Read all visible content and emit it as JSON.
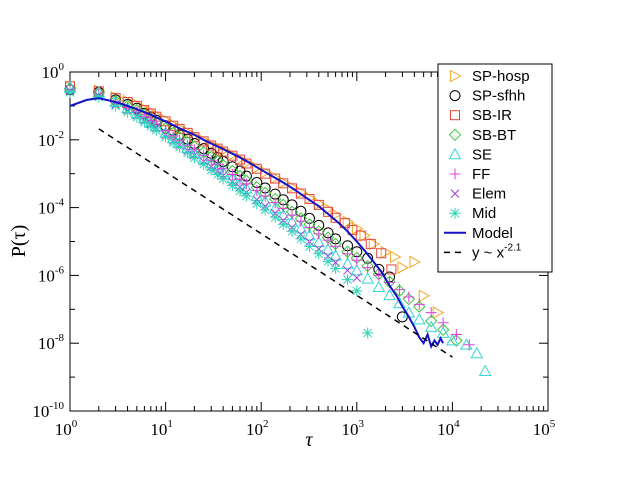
{
  "chart_data": {
    "type": "scatter",
    "title": "",
    "xlabel": "τ",
    "ylabel": "P(τ)",
    "xscale": "log",
    "yscale": "log",
    "xlim": [
      1,
      100000
    ],
    "ylim": [
      1e-10,
      1
    ],
    "x_ticks": [
      {
        "base": "10",
        "exp": "0",
        "value": 1
      },
      {
        "base": "10",
        "exp": "1",
        "value": 10
      },
      {
        "base": "10",
        "exp": "2",
        "value": 100
      },
      {
        "base": "10",
        "exp": "3",
        "value": 1000
      },
      {
        "base": "10",
        "exp": "4",
        "value": 10000
      },
      {
        "base": "10",
        "exp": "5",
        "value": 100000
      }
    ],
    "y_ticks": [
      {
        "base": "10",
        "exp": "0",
        "value": 1
      },
      {
        "base": "10",
        "exp": "-2",
        "value": 0.01
      },
      {
        "base": "10",
        "exp": "-4",
        "value": 0.0001
      },
      {
        "base": "10",
        "exp": "-6",
        "value": 1e-06
      },
      {
        "base": "10",
        "exp": "-8",
        "value": 1e-08
      },
      {
        "base": "10",
        "exp": "-10",
        "value": 1e-10
      }
    ],
    "legend_position": "top-right",
    "series": [
      {
        "name": "SP-hosp",
        "marker": "triangle-right",
        "color": "#f5a623",
        "x": [
          1,
          2,
          3,
          4,
          5,
          6,
          7,
          8,
          10,
          12,
          14,
          17,
          20,
          25,
          30,
          35,
          40,
          50,
          60,
          70,
          90,
          110,
          140,
          170,
          210,
          260,
          320,
          400,
          500,
          600,
          800,
          1000,
          1200,
          1500,
          2000,
          2500,
          3000,
          4000,
          5000,
          7000
        ],
        "y": [
          0.35,
          0.28,
          0.18,
          0.14,
          0.11,
          0.08,
          0.065,
          0.052,
          0.038,
          0.028,
          0.022,
          0.017,
          0.013,
          0.0095,
          0.0072,
          0.0058,
          0.0048,
          0.0036,
          0.0027,
          0.0021,
          0.0015,
          0.0011,
          0.00075,
          0.00055,
          0.0004,
          0.00028,
          0.00019,
          0.00013,
          9e-05,
          6.2e-05,
          3.8e-05,
          2.4e-05,
          1.5e-05,
          8.5e-06,
          4.8e-06,
          3.5e-06,
          1.7e-06,
          2.5e-06,
          2.5e-07,
          8e-08
        ]
      },
      {
        "name": "SP-sfhh",
        "marker": "circle",
        "color": "#000000",
        "x": [
          1,
          2,
          3,
          4,
          5,
          6,
          7,
          8,
          10,
          12,
          14,
          17,
          20,
          25,
          30,
          35,
          40,
          50,
          60,
          70,
          90,
          110,
          140,
          170,
          210,
          260,
          320,
          400,
          500,
          600,
          800,
          1000,
          1300,
          1700,
          2200,
          3000
        ],
        "y": [
          0.3,
          0.25,
          0.15,
          0.11,
          0.085,
          0.06,
          0.047,
          0.038,
          0.026,
          0.019,
          0.014,
          0.0105,
          0.0078,
          0.0055,
          0.004,
          0.003,
          0.0023,
          0.0016,
          0.0012,
          0.00085,
          0.00055,
          0.00038,
          0.00025,
          0.00017,
          0.00012,
          7.8e-05,
          4.8e-05,
          3e-05,
          1.8e-05,
          1.2e-05,
          7.5e-06,
          5e-06,
          3.2e-06,
          1.5e-06,
          9e-07,
          6e-08
        ]
      },
      {
        "name": "SB-IR",
        "marker": "square",
        "color": "#e8463d",
        "x": [
          1,
          2,
          3,
          4,
          5,
          6,
          7,
          8,
          10,
          12,
          14,
          17,
          20,
          25,
          30,
          35,
          40,
          50,
          60,
          70,
          90,
          110,
          140,
          170,
          210,
          260,
          320,
          400,
          500,
          600,
          750,
          900,
          1100,
          1400,
          1800,
          2300
        ],
        "y": [
          0.38,
          0.27,
          0.17,
          0.13,
          0.1,
          0.075,
          0.06,
          0.048,
          0.035,
          0.026,
          0.021,
          0.016,
          0.012,
          0.009,
          0.0068,
          0.0055,
          0.0045,
          0.0034,
          0.0026,
          0.002,
          0.0014,
          0.001,
          0.00072,
          0.00052,
          0.00037,
          0.00026,
          0.00018,
          0.00012,
          7.5e-05,
          5e-05,
          3.5e-05,
          2.2e-05,
          1.5e-05,
          8.5e-06,
          4.5e-06,
          1.5e-06
        ]
      },
      {
        "name": "SB-BT",
        "marker": "diamond",
        "color": "#3dc43d",
        "x": [
          1,
          2,
          3,
          4,
          5,
          6,
          7,
          8,
          10,
          12,
          14,
          17,
          20,
          25,
          30,
          35,
          40,
          50,
          60,
          70,
          90,
          110,
          140,
          170,
          210,
          260,
          320,
          400,
          500,
          600,
          800,
          1000,
          1300,
          1700,
          2200,
          2800,
          3500,
          4500,
          6000,
          8000,
          11000
        ],
        "y": [
          0.32,
          0.24,
          0.14,
          0.1,
          0.075,
          0.055,
          0.042,
          0.033,
          0.022,
          0.016,
          0.012,
          0.0085,
          0.0063,
          0.0043,
          0.0031,
          0.0024,
          0.0018,
          0.0012,
          0.00085,
          0.00062,
          0.0004,
          0.00027,
          0.00018,
          0.00012,
          7.5e-05,
          4.8e-05,
          3.2e-05,
          2e-05,
          1.3e-05,
          8.5e-06,
          5e-06,
          3.3e-06,
          1.9e-06,
          1.1e-06,
          6.5e-07,
          3.5e-07,
          2e-07,
          1.2e-07,
          4.5e-08,
          2.5e-08,
          1.2e-08
        ]
      },
      {
        "name": "SE",
        "marker": "triangle-up",
        "color": "#33d6d6",
        "x": [
          1,
          2,
          3,
          4,
          5,
          6,
          7,
          8,
          10,
          12,
          14,
          17,
          20,
          25,
          30,
          35,
          40,
          50,
          60,
          70,
          90,
          110,
          140,
          170,
          210,
          260,
          320,
          400,
          500,
          600,
          800,
          1000,
          1300,
          1700,
          2200,
          2800,
          3500,
          4500,
          6000,
          8000,
          10000,
          14000,
          18000,
          22000
        ],
        "y": [
          0.36,
          0.25,
          0.13,
          0.085,
          0.06,
          0.043,
          0.032,
          0.025,
          0.016,
          0.011,
          0.0082,
          0.0058,
          0.0042,
          0.0028,
          0.002,
          0.0015,
          0.0011,
          0.00072,
          0.0005,
          0.00036,
          0.00022,
          0.00015,
          9.5e-05,
          6e-05,
          3.8e-05,
          2.4e-05,
          1.5e-05,
          9.5e-06,
          5.8e-06,
          3.8e-06,
          2.2e-06,
          1.4e-06,
          8e-07,
          4.5e-07,
          2.6e-07,
          1.5e-07,
          8e-08,
          5e-08,
          3e-08,
          2e-08,
          1.2e-08,
          9e-09,
          5e-09,
          1.5e-09
        ]
      },
      {
        "name": "FF",
        "marker": "plus",
        "color": "#e040e0",
        "x": [
          1,
          2,
          3,
          4,
          5,
          6,
          7,
          8,
          10,
          12,
          14,
          17,
          20,
          25,
          30,
          35,
          40,
          50,
          60,
          70,
          90,
          110,
          140,
          170,
          210,
          260,
          320,
          400,
          500,
          600,
          800,
          1000,
          1300,
          1700,
          2200,
          2800,
          3500,
          4500,
          6000,
          8000,
          11000,
          15000
        ],
        "y": [
          0.3,
          0.22,
          0.13,
          0.09,
          0.066,
          0.048,
          0.037,
          0.029,
          0.019,
          0.013,
          0.0098,
          0.0069,
          0.0051,
          0.0035,
          0.0025,
          0.0019,
          0.0014,
          0.00095,
          0.00068,
          0.0005,
          0.00032,
          0.00022,
          0.00014,
          9.5e-05,
          6e-05,
          4e-05,
          2.6e-05,
          1.7e-05,
          1.1e-05,
          7.2e-06,
          4.3e-06,
          2.8e-06,
          1.7e-06,
          1e-06,
          6.2e-07,
          3.8e-07,
          2.3e-07,
          1.4e-07,
          8e-08,
          4e-08,
          1.8e-08,
          9e-09
        ]
      },
      {
        "name": "Elem",
        "marker": "cross",
        "color": "#9b3bdb",
        "x": [
          1,
          2,
          3,
          4,
          5,
          6,
          7,
          8,
          10,
          12,
          14,
          17,
          20,
          25,
          30,
          35,
          40,
          50,
          60,
          70,
          90,
          110,
          140,
          170,
          210,
          260,
          320,
          400,
          500,
          600,
          800,
          1000
        ],
        "y": [
          0.28,
          0.2,
          0.11,
          0.075,
          0.053,
          0.038,
          0.029,
          0.022,
          0.014,
          0.0095,
          0.007,
          0.0048,
          0.0035,
          0.0023,
          0.0016,
          0.0012,
          0.00088,
          0.00058,
          0.0004,
          0.00028,
          0.00017,
          0.00011,
          6.8e-05,
          4.2e-05,
          2.6e-05,
          1.6e-05,
          9.8e-06,
          6e-06,
          3.7e-06,
          2.4e-06,
          1.4e-06,
          8.5e-07
        ]
      },
      {
        "name": "Mid",
        "marker": "asterisk",
        "color": "#2ed6b8",
        "x": [
          1,
          2,
          3,
          4,
          5,
          6,
          7,
          8,
          10,
          12,
          14,
          17,
          20,
          25,
          30,
          35,
          40,
          50,
          60,
          70,
          90,
          110,
          140,
          170,
          210,
          260,
          320,
          400,
          500,
          600,
          800,
          1000,
          1300
        ],
        "y": [
          0.25,
          0.18,
          0.1,
          0.065,
          0.046,
          0.033,
          0.025,
          0.019,
          0.012,
          0.0082,
          0.006,
          0.0041,
          0.0029,
          0.0019,
          0.0013,
          0.00095,
          0.0007,
          0.00045,
          0.00031,
          0.00022,
          0.00013,
          8.5e-05,
          5.2e-05,
          3.2e-05,
          2e-05,
          1.2e-05,
          7.2e-06,
          4.3e-06,
          2.6e-06,
          1.6e-06,
          7.5e-07,
          3.5e-07,
          2e-08
        ]
      },
      {
        "name": "Model",
        "marker": "line",
        "color": "#1212c9",
        "x": [
          1,
          1.5,
          2,
          3,
          4,
          5,
          6,
          7,
          8,
          10,
          12,
          15,
          20,
          25,
          30,
          40,
          50,
          60,
          80,
          100,
          130,
          170,
          220,
          300,
          400,
          500,
          650,
          800,
          1000,
          1200,
          1500,
          1800,
          2200,
          2600,
          3000,
          3500,
          4000,
          4500,
          5000,
          5500,
          6000,
          6500,
          7000,
          7500,
          8000
        ],
        "y": [
          0.1,
          0.15,
          0.17,
          0.13,
          0.1,
          0.08,
          0.065,
          0.055,
          0.046,
          0.035,
          0.027,
          0.02,
          0.014,
          0.01,
          0.0078,
          0.0053,
          0.0039,
          0.003,
          0.0019,
          0.0013,
          0.00085,
          0.00055,
          0.00035,
          0.00019,
          0.00011,
          6.5e-05,
          3.5e-05,
          2e-05,
          1e-05,
          5.5e-06,
          2.5e-06,
          1.3e-06,
          5e-07,
          2.5e-07,
          1.2e-07,
          6e-08,
          3e-08,
          1.5e-08,
          1e-08,
          1.8e-08,
          8e-09,
          1.2e-08,
          9e-09,
          1.4e-08,
          1e-08
        ]
      },
      {
        "name": "y ~ x^-2.1",
        "legend_base": "y ~ x",
        "legend_exp": "-2.1",
        "marker": "dashed",
        "color": "#000000",
        "x": [
          2,
          10000
        ],
        "y": [
          0.021,
          3.88e-09
        ]
      }
    ]
  }
}
